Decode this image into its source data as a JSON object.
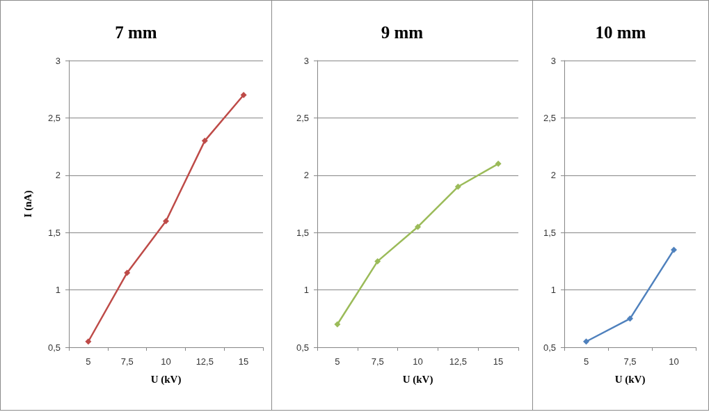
{
  "chart_data": [
    {
      "type": "line",
      "title": "7 mm",
      "xlabel": "U (kV)",
      "ylabel": "I (nA)",
      "categories": [
        "5",
        "7,5",
        "10",
        "12,5",
        "15"
      ],
      "series": [
        {
          "color": "#be4b48",
          "values": [
            0.55,
            1.15,
            1.6,
            2.3,
            2.7
          ]
        }
      ],
      "ylim": [
        0.5,
        3
      ],
      "yticks": [
        {
          "value": 0.5,
          "label": "0,5"
        },
        1,
        {
          "value": 1.5,
          "label": "1,5"
        },
        2,
        {
          "value": 2.5,
          "label": "2,5"
        },
        3
      ],
      "grid": "y",
      "marker": "diamond",
      "line_style": "solid"
    },
    {
      "type": "line",
      "title": "9 mm",
      "xlabel": "U (kV)",
      "categories": [
        "5",
        "7,5",
        "10",
        "12,5",
        "15"
      ],
      "series": [
        {
          "color": "#9bbb59",
          "values": [
            0.7,
            1.25,
            1.55,
            1.9,
            2.1
          ]
        }
      ],
      "ylim": [
        0.5,
        3
      ],
      "yticks": [
        {
          "value": 0.5,
          "label": "0,5"
        },
        1,
        {
          "value": 1.5,
          "label": "1,5"
        },
        2,
        {
          "value": 2.5,
          "label": "2,5"
        },
        3
      ],
      "grid": "y",
      "marker": "diamond",
      "line_style": "solid"
    },
    {
      "type": "line",
      "title": "10 mm",
      "xlabel": "U (kV)",
      "categories": [
        "5",
        "7,5",
        "10"
      ],
      "series": [
        {
          "color": "#4f81bd",
          "values": [
            0.55,
            0.75,
            1.35
          ]
        }
      ],
      "ylim": [
        0.5,
        3
      ],
      "yticks": [
        {
          "value": 0.5,
          "label": "0,5"
        },
        1,
        {
          "value": 1.5,
          "label": "1,5"
        },
        2,
        {
          "value": 2.5,
          "label": "2,5"
        },
        3
      ],
      "grid": "y",
      "marker": "diamond",
      "line_style": "solid"
    }
  ]
}
